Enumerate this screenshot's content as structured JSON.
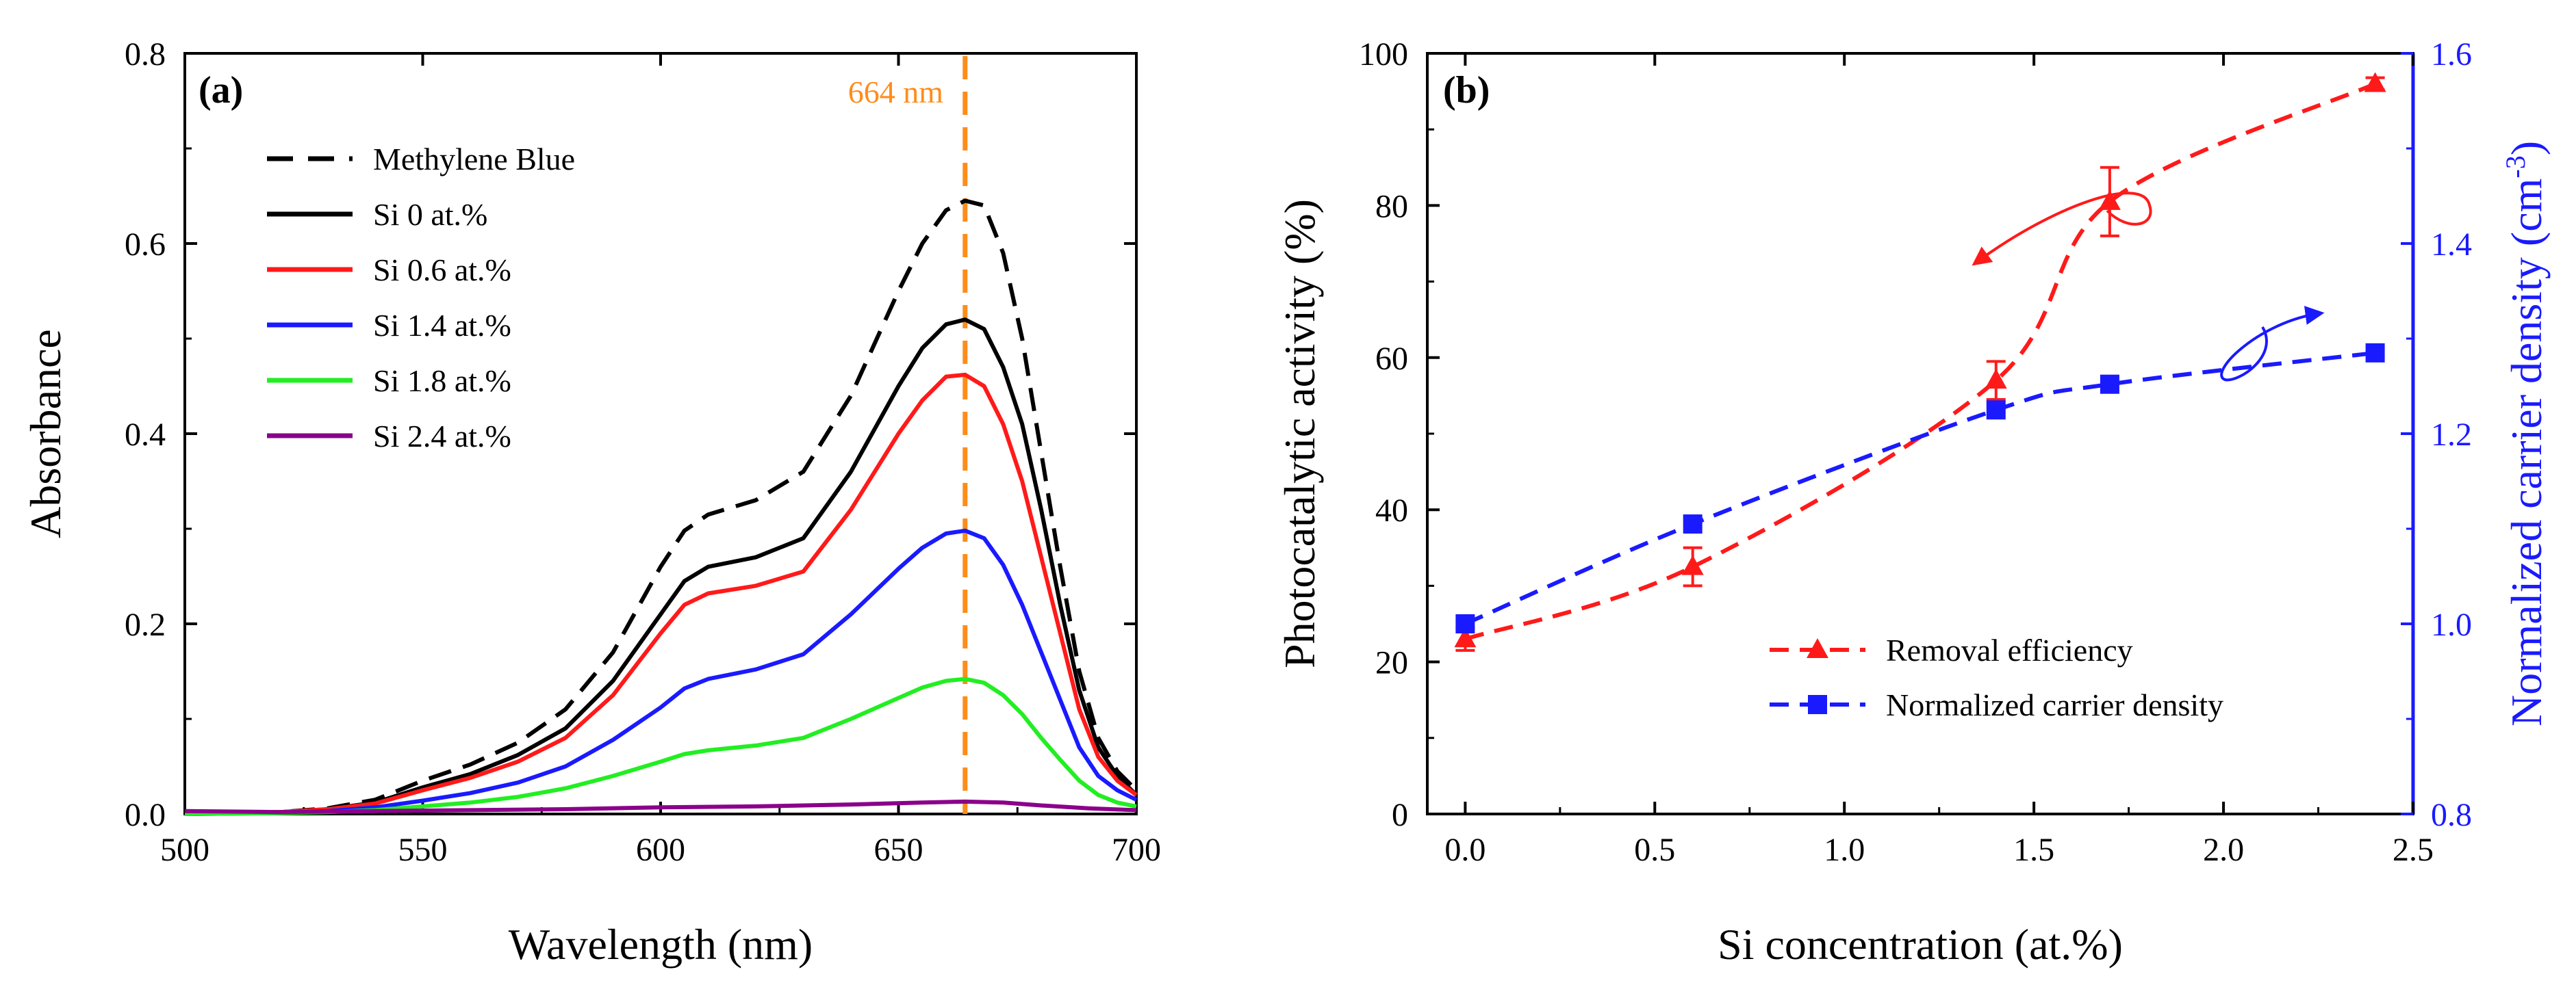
{
  "chart_data": [
    {
      "type": "line",
      "panel_label": "(a)",
      "xlabel": "Wavelength (nm)",
      "ylabel": "Absorbance",
      "xlim": [
        500,
        700
      ],
      "ylim": [
        0,
        0.8
      ],
      "xticks": [
        "500",
        "550",
        "600",
        "650",
        "700"
      ],
      "yticks": [
        "0.0",
        "0.2",
        "0.4",
        "0.6",
        "0.8"
      ],
      "annotation": {
        "text": "664 nm",
        "x": 664,
        "color": "#ff8c1a"
      },
      "legend_position": "top-left",
      "series": [
        {
          "name": "Methylene Blue",
          "color": "#000000",
          "dash": "dashed",
          "x": [
            500,
            520,
            530,
            540,
            550,
            560,
            570,
            580,
            590,
            600,
            605,
            610,
            620,
            630,
            640,
            650,
            655,
            660,
            664,
            668,
            672,
            676,
            680,
            684,
            688,
            692,
            696,
            700
          ],
          "y": [
            0,
            0.002,
            0.006,
            0.015,
            0.035,
            0.052,
            0.075,
            0.11,
            0.17,
            0.26,
            0.298,
            0.315,
            0.33,
            0.36,
            0.44,
            0.55,
            0.6,
            0.635,
            0.645,
            0.64,
            0.59,
            0.5,
            0.38,
            0.26,
            0.15,
            0.08,
            0.045,
            0.025
          ]
        },
        {
          "name": "Si 0 at.%",
          "color": "#000000",
          "dash": "solid",
          "x": [
            500,
            520,
            530,
            540,
            550,
            560,
            570,
            580,
            590,
            600,
            605,
            610,
            620,
            630,
            640,
            650,
            655,
            660,
            664,
            668,
            672,
            676,
            680,
            684,
            688,
            692,
            696,
            700
          ],
          "y": [
            0,
            0.002,
            0.005,
            0.012,
            0.028,
            0.042,
            0.062,
            0.09,
            0.14,
            0.21,
            0.245,
            0.26,
            0.27,
            0.29,
            0.36,
            0.45,
            0.49,
            0.515,
            0.52,
            0.51,
            0.47,
            0.41,
            0.32,
            0.22,
            0.13,
            0.07,
            0.04,
            0.02
          ]
        },
        {
          "name": "Si 0.6 at.%",
          "color": "#ff1a1a",
          "dash": "solid",
          "x": [
            500,
            520,
            530,
            540,
            550,
            560,
            570,
            580,
            590,
            600,
            605,
            610,
            620,
            630,
            640,
            650,
            655,
            660,
            664,
            668,
            672,
            676,
            680,
            684,
            688,
            692,
            696,
            700
          ],
          "y": [
            0,
            0.002,
            0.005,
            0.011,
            0.025,
            0.038,
            0.055,
            0.08,
            0.125,
            0.19,
            0.22,
            0.232,
            0.24,
            0.255,
            0.32,
            0.4,
            0.435,
            0.46,
            0.462,
            0.45,
            0.41,
            0.35,
            0.27,
            0.19,
            0.11,
            0.06,
            0.035,
            0.02
          ]
        },
        {
          "name": "Si 1.4 at.%",
          "color": "#1a1aff",
          "dash": "solid",
          "x": [
            500,
            520,
            530,
            540,
            550,
            560,
            570,
            580,
            590,
            600,
            605,
            610,
            620,
            630,
            640,
            650,
            655,
            660,
            664,
            668,
            672,
            676,
            680,
            684,
            688,
            692,
            696,
            700
          ],
          "y": [
            0,
            0.001,
            0.003,
            0.007,
            0.014,
            0.022,
            0.033,
            0.05,
            0.078,
            0.112,
            0.132,
            0.142,
            0.152,
            0.168,
            0.21,
            0.258,
            0.28,
            0.295,
            0.298,
            0.29,
            0.262,
            0.22,
            0.17,
            0.12,
            0.07,
            0.04,
            0.025,
            0.015
          ]
        },
        {
          "name": "Si 1.8 at.%",
          "color": "#22ee22",
          "dash": "solid",
          "x": [
            500,
            520,
            530,
            540,
            550,
            560,
            570,
            580,
            590,
            600,
            605,
            610,
            620,
            630,
            640,
            650,
            655,
            660,
            664,
            668,
            672,
            676,
            680,
            684,
            688,
            692,
            696,
            700
          ],
          "y": [
            0,
            0.001,
            0.002,
            0.004,
            0.008,
            0.012,
            0.018,
            0.027,
            0.04,
            0.055,
            0.063,
            0.067,
            0.072,
            0.08,
            0.1,
            0.122,
            0.133,
            0.14,
            0.142,
            0.138,
            0.125,
            0.105,
            0.08,
            0.057,
            0.035,
            0.02,
            0.012,
            0.008
          ]
        },
        {
          "name": "Si 2.4 at.%",
          "color": "#8b008b",
          "dash": "solid",
          "x": [
            500,
            520,
            540,
            560,
            580,
            600,
            620,
            640,
            655,
            664,
            672,
            680,
            690,
            700
          ],
          "y": [
            0.003,
            0.002,
            0.003,
            0.004,
            0.005,
            0.007,
            0.008,
            0.01,
            0.012,
            0.013,
            0.012,
            0.009,
            0.006,
            0.004
          ]
        }
      ]
    },
    {
      "type": "line",
      "panel_label": "(b)",
      "xlabel": "Si concentration (at.%)",
      "ylabel": "Photocatalytic activity (%)",
      "ylabel_right": "Normalized carrier density (cm",
      "ylabel_right_sup": "-3",
      "ylabel_right_end": ")",
      "xlim": [
        -0.1,
        2.5
      ],
      "ylim": [
        0,
        100
      ],
      "ylim_right": [
        0.8,
        1.6
      ],
      "xticks": [
        0.0,
        0.5,
        1.0,
        1.5,
        2.0,
        2.5
      ],
      "xtick_labels": [
        "0.0",
        "0.5",
        "1.0",
        "1.5",
        "2.0",
        "2.5"
      ],
      "yticks": [
        0,
        20,
        40,
        60,
        80,
        100
      ],
      "ytick_labels": [
        "0",
        "20",
        "40",
        "60",
        "80",
        "100"
      ],
      "yticks_right": [
        0.8,
        1.0,
        1.2,
        1.4,
        1.6
      ],
      "ytick_right_labels": [
        "0.8",
        "1.0",
        "1.2",
        "1.4",
        "1.6"
      ],
      "right_axis_color": "#1a1aff",
      "legend_position": "bottom-right",
      "series": [
        {
          "name": "Removal efficiency",
          "color": "#ff1a1a",
          "marker": "triangle",
          "axis": "left",
          "x": [
            0,
            0.6,
            1.4,
            1.7,
            2.4
          ],
          "y": [
            23,
            32.5,
            57,
            80.5,
            96
          ],
          "yerr": [
            1.5,
            2.5,
            2.5,
            4.5,
            0.8
          ]
        },
        {
          "name": "Normalized carrier density",
          "color": "#1a1aff",
          "marker": "square",
          "axis": "right",
          "x": [
            0,
            0.6,
            1.4,
            1.7,
            2.4
          ],
          "y": [
            1.0,
            1.105,
            1.225,
            1.252,
            1.285
          ]
        }
      ]
    }
  ]
}
